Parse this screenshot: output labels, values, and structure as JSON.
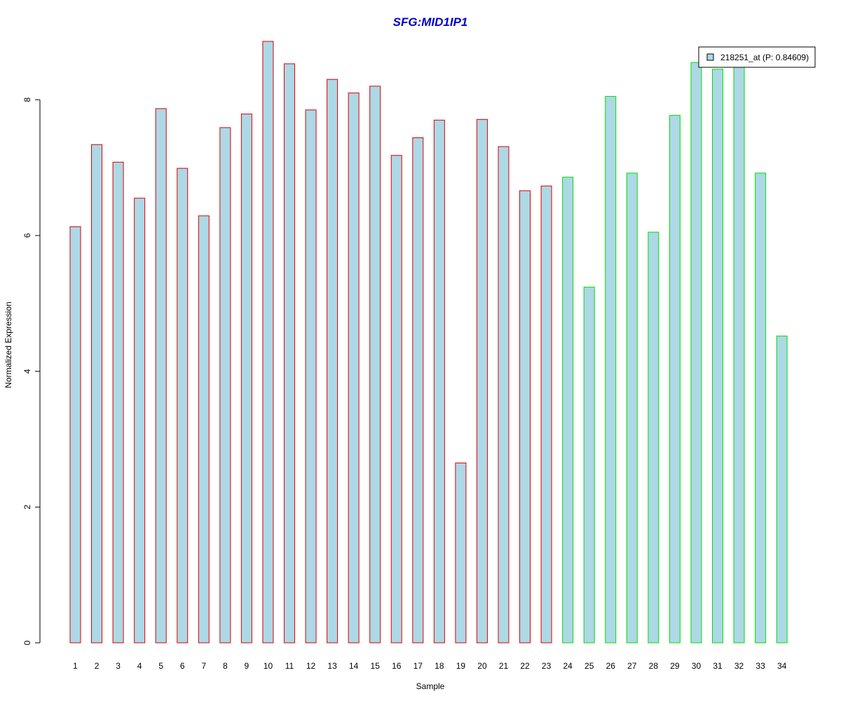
{
  "chart_data": {
    "type": "bar",
    "title": "SFG:MID1IP1",
    "xlabel": "Sample",
    "ylabel": "Normalized Expression",
    "categories": [
      "1",
      "2",
      "3",
      "4",
      "5",
      "6",
      "7",
      "8",
      "9",
      "10",
      "11",
      "12",
      "13",
      "14",
      "15",
      "16",
      "17",
      "18",
      "19",
      "20",
      "21",
      "22",
      "23",
      "24",
      "25",
      "26",
      "27",
      "28",
      "29",
      "30",
      "31",
      "32",
      "33",
      "34"
    ],
    "series": [
      {
        "name": "218251_at (P: 0.84609)",
        "values": [
          6.13,
          7.34,
          7.08,
          6.55,
          7.87,
          6.99,
          6.29,
          7.59,
          7.79,
          8.86,
          8.53,
          7.85,
          8.3,
          8.1,
          8.2,
          7.18,
          7.44,
          7.7,
          2.65,
          7.71,
          7.31,
          6.66,
          6.73,
          6.86,
          5.24,
          8.05,
          6.92,
          6.05,
          7.77,
          8.55,
          8.45,
          8.49,
          6.92,
          4.52
        ]
      }
    ],
    "group_border_colors": [
      "#e00000",
      "#e00000",
      "#e00000",
      "#e00000",
      "#e00000",
      "#e00000",
      "#e00000",
      "#e00000",
      "#e00000",
      "#e00000",
      "#e00000",
      "#e00000",
      "#e00000",
      "#e00000",
      "#e00000",
      "#e00000",
      "#e00000",
      "#e00000",
      "#e00000",
      "#e00000",
      "#e00000",
      "#e00000",
      "#e00000",
      "#00e000",
      "#00e000",
      "#00e000",
      "#00e000",
      "#00e000",
      "#00e000",
      "#00e000",
      "#00e000",
      "#00e000",
      "#00e000",
      "#00e000"
    ],
    "bar_fill_color": "#add8e6",
    "title_color": "#0000cc",
    "yticks": [
      0,
      2,
      4,
      6,
      8
    ],
    "ylim": [
      0,
      8.86
    ],
    "legend_position": "top-right",
    "grid": false
  }
}
